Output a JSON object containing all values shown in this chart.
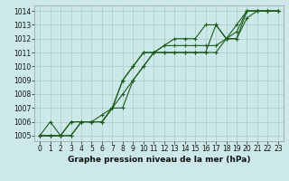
{
  "title": "Graphe pression niveau de la mer (hPa)",
  "bg_color": "#cce8e8",
  "line_color": "#1a5c1a",
  "grid_color": "#aacccc",
  "xlim": [
    -0.5,
    23.5
  ],
  "ylim": [
    1004.6,
    1014.4
  ],
  "xticks": [
    0,
    1,
    2,
    3,
    4,
    5,
    6,
    7,
    8,
    9,
    10,
    11,
    12,
    13,
    14,
    15,
    16,
    17,
    18,
    19,
    20,
    21,
    22,
    23
  ],
  "yticks": [
    1005,
    1006,
    1007,
    1008,
    1009,
    1010,
    1011,
    1012,
    1013,
    1014
  ],
  "series": [
    [
      1005.0,
      1006.0,
      1005.0,
      1006.0,
      1006.0,
      1006.0,
      1006.5,
      1007.0,
      1009.0,
      1010.0,
      1011.0,
      1011.0,
      1011.0,
      1011.0,
      1011.0,
      1011.0,
      1011.0,
      1013.0,
      1012.0,
      1012.0,
      1014.0,
      1014.0,
      1014.0,
      1014.0
    ],
    [
      1005.0,
      1005.0,
      1005.0,
      1005.0,
      1006.0,
      1006.0,
      1006.0,
      1007.0,
      1009.0,
      1010.0,
      1011.0,
      1011.0,
      1011.5,
      1011.5,
      1011.5,
      1011.5,
      1011.5,
      1011.5,
      1012.0,
      1012.5,
      1014.0,
      1014.0,
      1014.0,
      1014.0
    ],
    [
      1005.0,
      1005.0,
      1005.0,
      1005.0,
      1006.0,
      1006.0,
      1006.0,
      1007.0,
      1007.0,
      1009.0,
      1010.0,
      1011.0,
      1011.0,
      1011.0,
      1011.0,
      1011.0,
      1011.0,
      1011.0,
      1012.0,
      1012.0,
      1013.5,
      1014.0,
      1014.0,
      1014.0
    ],
    [
      1005.0,
      1005.0,
      1005.0,
      1006.0,
      1006.0,
      1006.0,
      1006.0,
      1007.0,
      1008.0,
      1009.0,
      1010.0,
      1011.0,
      1011.5,
      1012.0,
      1012.0,
      1012.0,
      1013.0,
      1013.0,
      1012.0,
      1013.0,
      1014.0,
      1014.0,
      1014.0,
      1014.0
    ]
  ],
  "xlabel_fontsize": 6.5,
  "tick_fontsize": 5.5,
  "linewidth": 0.8,
  "markersize": 3.5
}
